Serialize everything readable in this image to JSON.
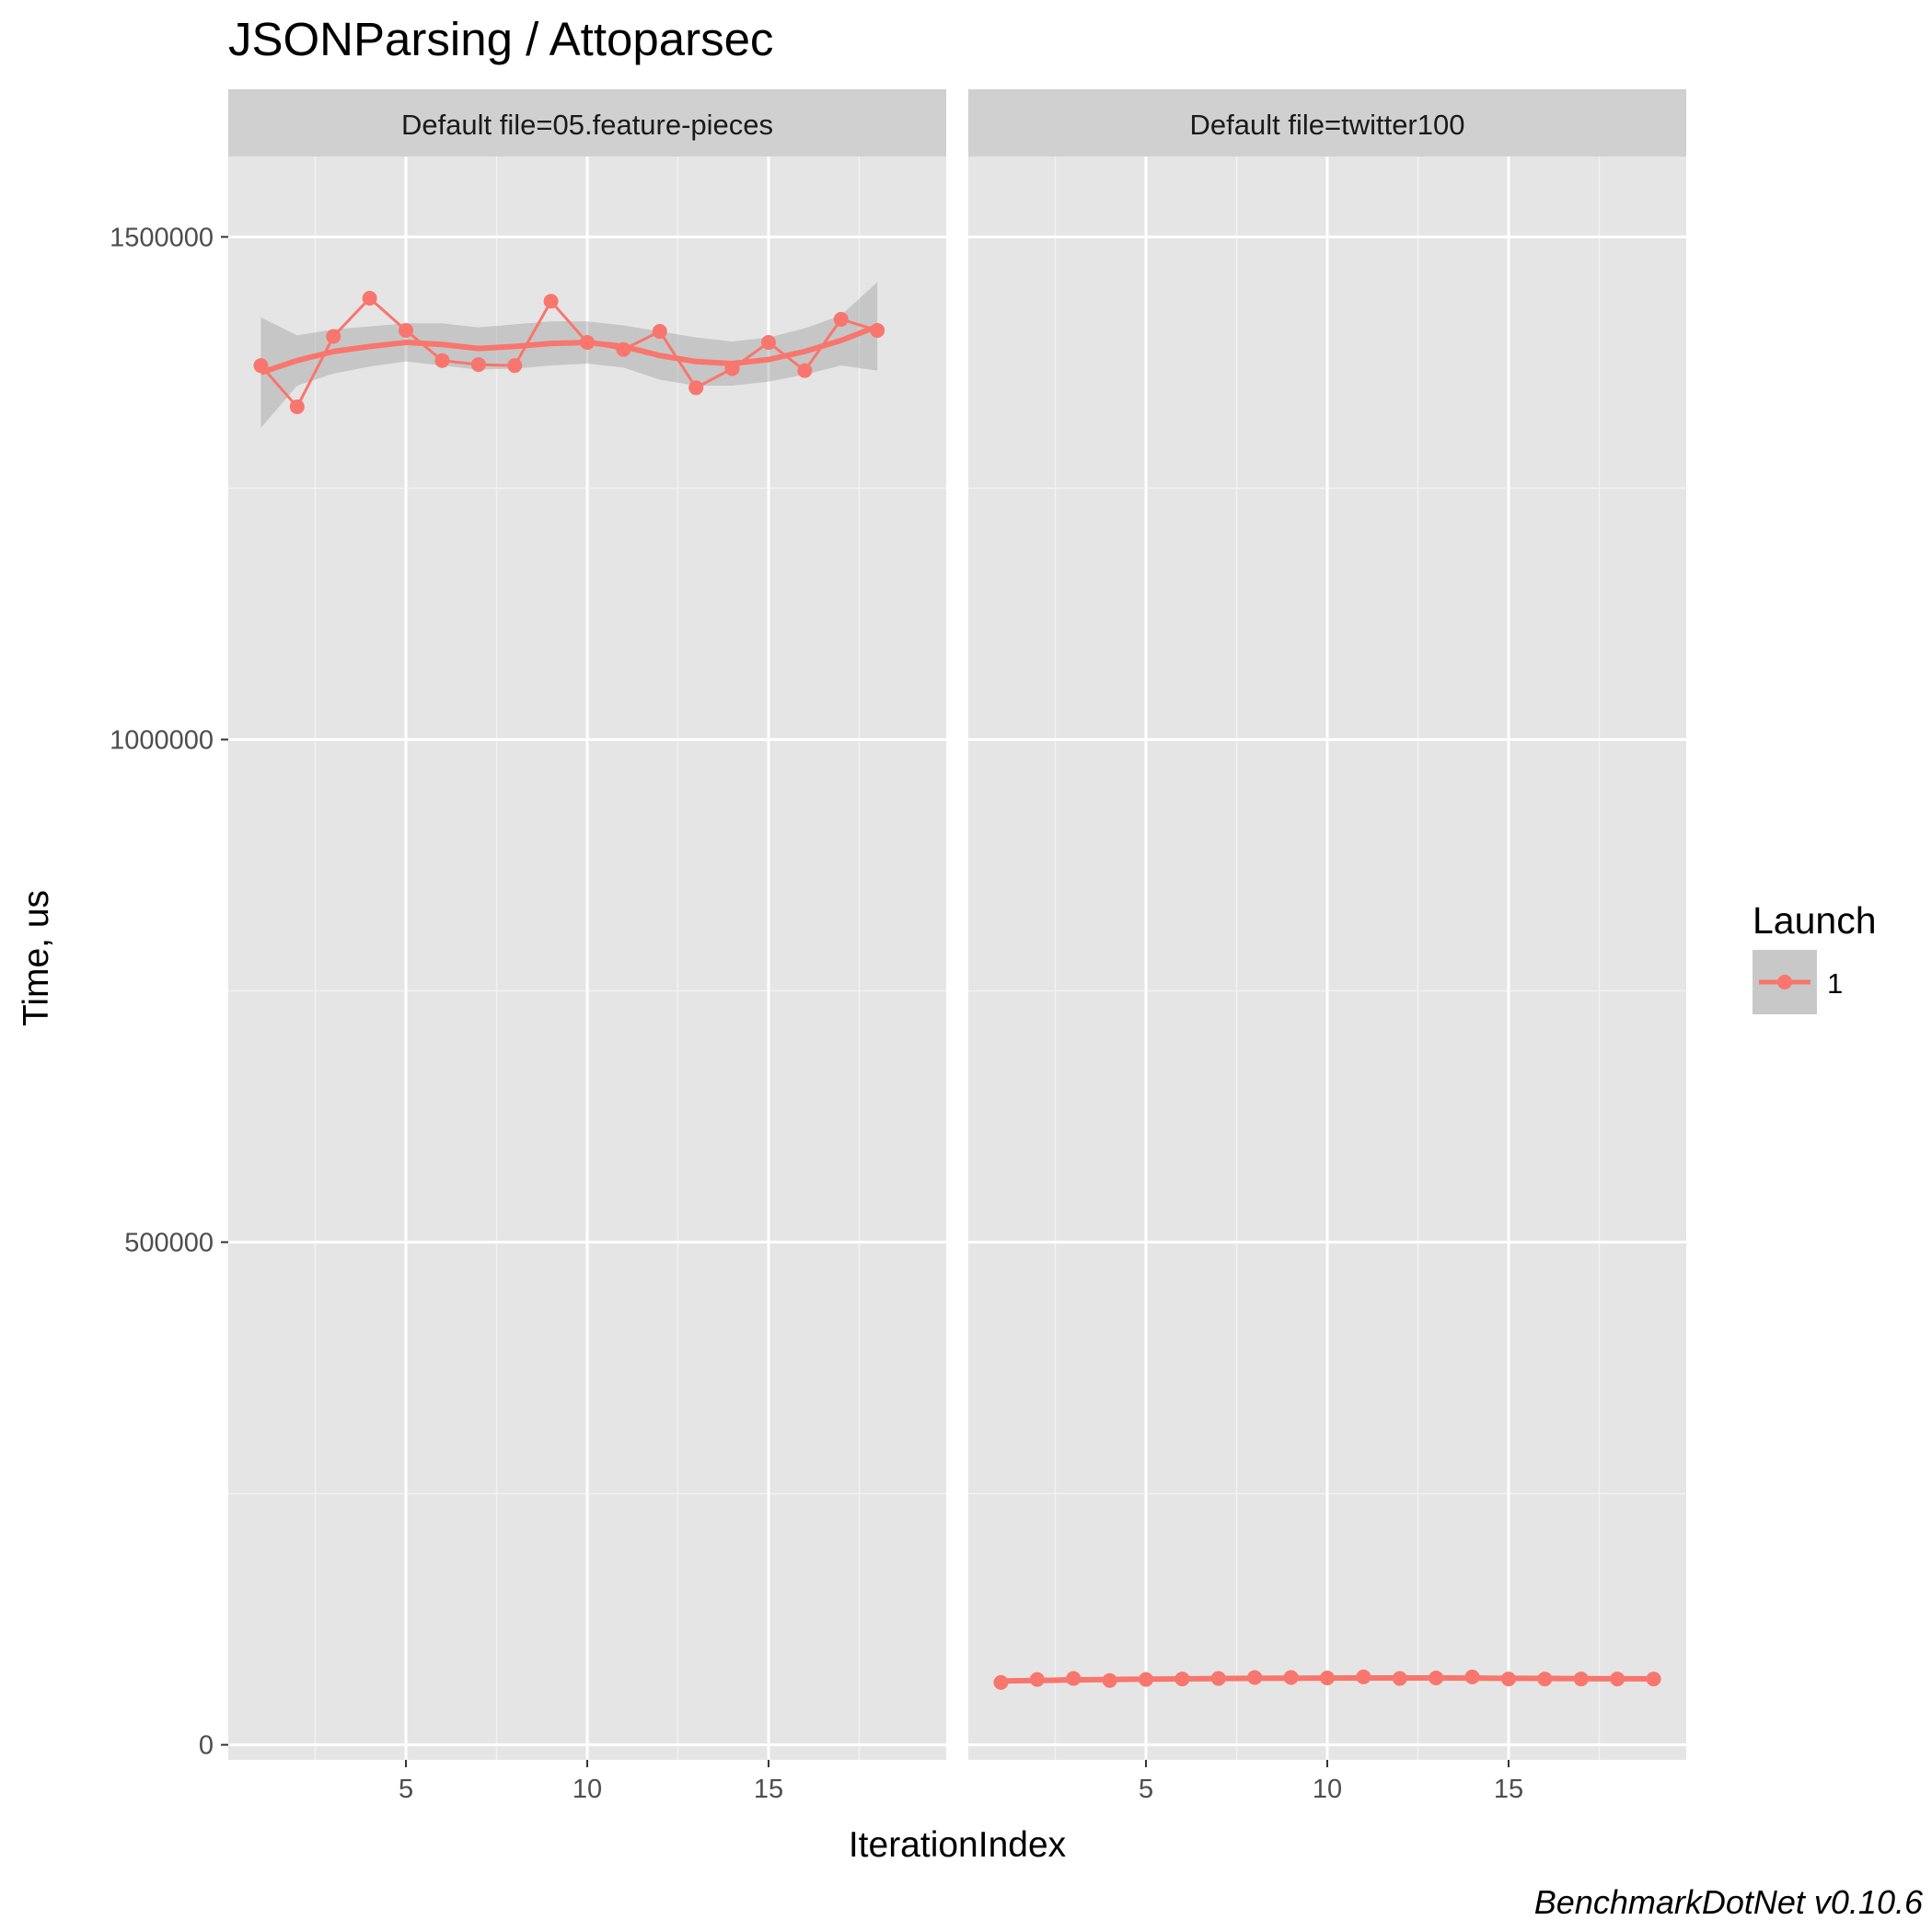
{
  "chart_data": {
    "type": "line",
    "title": "JSONParsing / Attoparsec",
    "xlabel": "IterationIndex",
    "ylabel": "Time, us",
    "caption": "BenchmarkDotNet v0.10.6",
    "ylim": [
      -15000,
      1580000
    ],
    "yticks": [
      0,
      500000,
      1000000,
      1500000
    ],
    "xticks": [
      5,
      10,
      15
    ],
    "grid": true,
    "legend": {
      "title": "Launch",
      "placement": "right",
      "entries": [
        {
          "label": "1",
          "color": "#F8766D"
        }
      ]
    },
    "colors": {
      "series": "#F8766D",
      "panel_bg": "#E5E5E5",
      "strip_bg": "#D0D0D0",
      "ribbon": "#999999"
    },
    "panels": [
      {
        "strip": "Default file=05.feature-pieces",
        "xlim": [
          0.1,
          19.9
        ],
        "series": [
          {
            "name": "1",
            "x": [
              1,
              2,
              3,
              4,
              5,
              6,
              7,
              8,
              9,
              10,
              11,
              12,
              13,
              14,
              15,
              16,
              17,
              18
            ],
            "values": [
              1372000,
              1331000,
              1401000,
              1439000,
              1407000,
              1377000,
              1373000,
              1372000,
              1436000,
              1395000,
              1388000,
              1406000,
              1350000,
              1369000,
              1395000,
              1367000,
              1418000,
              1407000
            ]
          }
        ],
        "smooth": {
          "x": [
            1,
            2,
            3,
            4,
            5,
            6,
            7,
            8,
            9,
            10,
            11,
            12,
            13,
            14,
            15,
            16,
            17,
            18
          ],
          "values": [
            1365000,
            1377000,
            1386000,
            1391000,
            1395000,
            1393000,
            1389000,
            1391000,
            1394000,
            1395000,
            1391000,
            1382000,
            1376000,
            1374000,
            1378000,
            1386000,
            1397000,
            1411000
          ],
          "lower": [
            1310000,
            1352000,
            1364000,
            1371000,
            1376000,
            1372000,
            1368000,
            1369000,
            1372000,
            1374000,
            1370000,
            1358000,
            1352000,
            1352000,
            1356000,
            1363000,
            1372000,
            1367000
          ],
          "upper": [
            1420000,
            1402000,
            1408000,
            1411000,
            1414000,
            1414000,
            1410000,
            1413000,
            1416000,
            1416000,
            1412000,
            1406000,
            1400000,
            1396000,
            1400000,
            1409000,
            1422000,
            1455000
          ]
        }
      },
      {
        "strip": "Default file=twitter100",
        "xlim": [
          0.1,
          19.9
        ],
        "series": [
          {
            "name": "1",
            "x": [
              1,
              2,
              3,
              4,
              5,
              6,
              7,
              8,
              9,
              10,
              11,
              12,
              13,
              14,
              15,
              16,
              17,
              18,
              19
            ],
            "values": [
              62000,
              65000,
              66000,
              64000,
              65000,
              65500,
              66000,
              67000,
              67000,
              66500,
              67500,
              66000,
              66500,
              67500,
              65500,
              65500,
              65500,
              65500,
              65500
            ]
          }
        ],
        "smooth": {
          "x": [
            1,
            2,
            3,
            4,
            5,
            6,
            7,
            8,
            9,
            10,
            11,
            12,
            13,
            14,
            15,
            16,
            17,
            18,
            19
          ],
          "values": [
            63500,
            64000,
            64500,
            65000,
            65300,
            65600,
            65900,
            66100,
            66300,
            66400,
            66500,
            66500,
            66500,
            66400,
            66200,
            66000,
            65800,
            65700,
            65600
          ],
          "lower": [
            61000,
            62500,
            63200,
            63800,
            64200,
            64500,
            64800,
            65000,
            65200,
            65300,
            65400,
            65400,
            65400,
            65300,
            65100,
            64900,
            64600,
            64300,
            63800
          ],
          "upper": [
            66000,
            65500,
            65800,
            66200,
            66400,
            66700,
            67000,
            67200,
            67400,
            67500,
            67600,
            67600,
            67600,
            67500,
            67300,
            67100,
            67000,
            67100,
            67400
          ]
        }
      }
    ]
  }
}
